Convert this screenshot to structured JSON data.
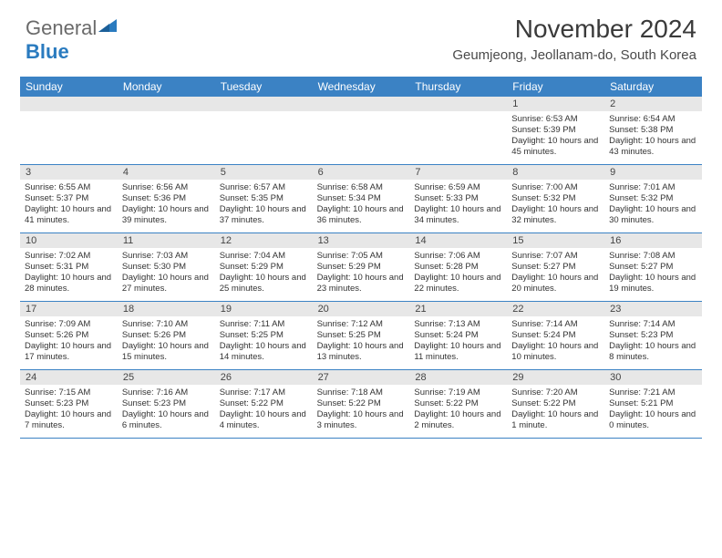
{
  "brand": {
    "part1": "General",
    "part2": "Blue"
  },
  "title": "November 2024",
  "location": "Geumjeong, Jeollanam-do, South Korea",
  "colors": {
    "header_bg": "#3b82c4",
    "header_text": "#ffffff",
    "daynum_bg": "#e7e7e7",
    "grid_line": "#3b82c4",
    "text": "#333333"
  },
  "dayNames": [
    "Sunday",
    "Monday",
    "Tuesday",
    "Wednesday",
    "Thursday",
    "Friday",
    "Saturday"
  ],
  "weeks": [
    [
      {
        "day": "",
        "sunrise": "",
        "sunset": "",
        "daylight": ""
      },
      {
        "day": "",
        "sunrise": "",
        "sunset": "",
        "daylight": ""
      },
      {
        "day": "",
        "sunrise": "",
        "sunset": "",
        "daylight": ""
      },
      {
        "day": "",
        "sunrise": "",
        "sunset": "",
        "daylight": ""
      },
      {
        "day": "",
        "sunrise": "",
        "sunset": "",
        "daylight": ""
      },
      {
        "day": "1",
        "sunrise": "Sunrise: 6:53 AM",
        "sunset": "Sunset: 5:39 PM",
        "daylight": "Daylight: 10 hours and 45 minutes."
      },
      {
        "day": "2",
        "sunrise": "Sunrise: 6:54 AM",
        "sunset": "Sunset: 5:38 PM",
        "daylight": "Daylight: 10 hours and 43 minutes."
      }
    ],
    [
      {
        "day": "3",
        "sunrise": "Sunrise: 6:55 AM",
        "sunset": "Sunset: 5:37 PM",
        "daylight": "Daylight: 10 hours and 41 minutes."
      },
      {
        "day": "4",
        "sunrise": "Sunrise: 6:56 AM",
        "sunset": "Sunset: 5:36 PM",
        "daylight": "Daylight: 10 hours and 39 minutes."
      },
      {
        "day": "5",
        "sunrise": "Sunrise: 6:57 AM",
        "sunset": "Sunset: 5:35 PM",
        "daylight": "Daylight: 10 hours and 37 minutes."
      },
      {
        "day": "6",
        "sunrise": "Sunrise: 6:58 AM",
        "sunset": "Sunset: 5:34 PM",
        "daylight": "Daylight: 10 hours and 36 minutes."
      },
      {
        "day": "7",
        "sunrise": "Sunrise: 6:59 AM",
        "sunset": "Sunset: 5:33 PM",
        "daylight": "Daylight: 10 hours and 34 minutes."
      },
      {
        "day": "8",
        "sunrise": "Sunrise: 7:00 AM",
        "sunset": "Sunset: 5:32 PM",
        "daylight": "Daylight: 10 hours and 32 minutes."
      },
      {
        "day": "9",
        "sunrise": "Sunrise: 7:01 AM",
        "sunset": "Sunset: 5:32 PM",
        "daylight": "Daylight: 10 hours and 30 minutes."
      }
    ],
    [
      {
        "day": "10",
        "sunrise": "Sunrise: 7:02 AM",
        "sunset": "Sunset: 5:31 PM",
        "daylight": "Daylight: 10 hours and 28 minutes."
      },
      {
        "day": "11",
        "sunrise": "Sunrise: 7:03 AM",
        "sunset": "Sunset: 5:30 PM",
        "daylight": "Daylight: 10 hours and 27 minutes."
      },
      {
        "day": "12",
        "sunrise": "Sunrise: 7:04 AM",
        "sunset": "Sunset: 5:29 PM",
        "daylight": "Daylight: 10 hours and 25 minutes."
      },
      {
        "day": "13",
        "sunrise": "Sunrise: 7:05 AM",
        "sunset": "Sunset: 5:29 PM",
        "daylight": "Daylight: 10 hours and 23 minutes."
      },
      {
        "day": "14",
        "sunrise": "Sunrise: 7:06 AM",
        "sunset": "Sunset: 5:28 PM",
        "daylight": "Daylight: 10 hours and 22 minutes."
      },
      {
        "day": "15",
        "sunrise": "Sunrise: 7:07 AM",
        "sunset": "Sunset: 5:27 PM",
        "daylight": "Daylight: 10 hours and 20 minutes."
      },
      {
        "day": "16",
        "sunrise": "Sunrise: 7:08 AM",
        "sunset": "Sunset: 5:27 PM",
        "daylight": "Daylight: 10 hours and 19 minutes."
      }
    ],
    [
      {
        "day": "17",
        "sunrise": "Sunrise: 7:09 AM",
        "sunset": "Sunset: 5:26 PM",
        "daylight": "Daylight: 10 hours and 17 minutes."
      },
      {
        "day": "18",
        "sunrise": "Sunrise: 7:10 AM",
        "sunset": "Sunset: 5:26 PM",
        "daylight": "Daylight: 10 hours and 15 minutes."
      },
      {
        "day": "19",
        "sunrise": "Sunrise: 7:11 AM",
        "sunset": "Sunset: 5:25 PM",
        "daylight": "Daylight: 10 hours and 14 minutes."
      },
      {
        "day": "20",
        "sunrise": "Sunrise: 7:12 AM",
        "sunset": "Sunset: 5:25 PM",
        "daylight": "Daylight: 10 hours and 13 minutes."
      },
      {
        "day": "21",
        "sunrise": "Sunrise: 7:13 AM",
        "sunset": "Sunset: 5:24 PM",
        "daylight": "Daylight: 10 hours and 11 minutes."
      },
      {
        "day": "22",
        "sunrise": "Sunrise: 7:14 AM",
        "sunset": "Sunset: 5:24 PM",
        "daylight": "Daylight: 10 hours and 10 minutes."
      },
      {
        "day": "23",
        "sunrise": "Sunrise: 7:14 AM",
        "sunset": "Sunset: 5:23 PM",
        "daylight": "Daylight: 10 hours and 8 minutes."
      }
    ],
    [
      {
        "day": "24",
        "sunrise": "Sunrise: 7:15 AM",
        "sunset": "Sunset: 5:23 PM",
        "daylight": "Daylight: 10 hours and 7 minutes."
      },
      {
        "day": "25",
        "sunrise": "Sunrise: 7:16 AM",
        "sunset": "Sunset: 5:23 PM",
        "daylight": "Daylight: 10 hours and 6 minutes."
      },
      {
        "day": "26",
        "sunrise": "Sunrise: 7:17 AM",
        "sunset": "Sunset: 5:22 PM",
        "daylight": "Daylight: 10 hours and 4 minutes."
      },
      {
        "day": "27",
        "sunrise": "Sunrise: 7:18 AM",
        "sunset": "Sunset: 5:22 PM",
        "daylight": "Daylight: 10 hours and 3 minutes."
      },
      {
        "day": "28",
        "sunrise": "Sunrise: 7:19 AM",
        "sunset": "Sunset: 5:22 PM",
        "daylight": "Daylight: 10 hours and 2 minutes."
      },
      {
        "day": "29",
        "sunrise": "Sunrise: 7:20 AM",
        "sunset": "Sunset: 5:22 PM",
        "daylight": "Daylight: 10 hours and 1 minute."
      },
      {
        "day": "30",
        "sunrise": "Sunrise: 7:21 AM",
        "sunset": "Sunset: 5:21 PM",
        "daylight": "Daylight: 10 hours and 0 minutes."
      }
    ]
  ]
}
